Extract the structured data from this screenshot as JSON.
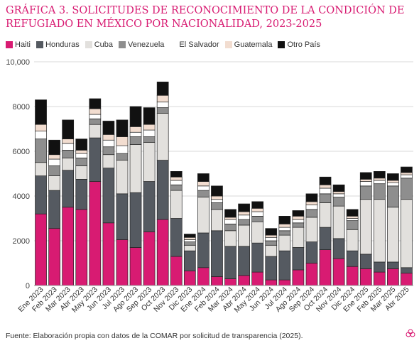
{
  "title": "GRÁFICA 3. SOLICITUDES DE RECONOCIMIENTO DE LA CONDICIÓN DE REFUGIADO EN MÉXICO POR NACIONALIDAD, 2023-2025",
  "source": "Fuente: Elaboración propia con datos de la COMAR por solicitud de transparencia (2025).",
  "logo_icon": "flower-logo-icon",
  "chart_data": {
    "type": "bar",
    "stacked": true,
    "ylim": [
      0,
      10000
    ],
    "yticks": [
      0,
      2000,
      4000,
      6000,
      8000,
      10000
    ],
    "ytick_labels": [
      "0",
      "2000",
      "4000",
      "6000",
      "8000",
      "10,000"
    ],
    "grid": true,
    "legend_position": "top-left",
    "categories": [
      "Ene 2023",
      "Feb 2023",
      "Mar 2023",
      "Abr 2023",
      "May 2023",
      "Jun 2023",
      "Jul 2023",
      "Ago 2023",
      "Sep 2023",
      "Oct 2023",
      "Nov 2023",
      "Dic 2023",
      "Ene 2024",
      "Feb 2024",
      "Mar 2024",
      "Abr 2024",
      "May 2024",
      "Jun 2024",
      "Jul 2024",
      "Ago 2024",
      "Sep 2024",
      "Oct 2024",
      "Nov 2024",
      "Dic 2024",
      "Ene 2025",
      "Feb 2025",
      "Mar 2025",
      "Abr 2025"
    ],
    "series": [
      {
        "name": "Haiti",
        "color": "#d81b72",
        "values": [
          3200,
          2550,
          3500,
          3400,
          4650,
          2800,
          2050,
          1700,
          2400,
          2950,
          1300,
          650,
          800,
          400,
          300,
          450,
          600,
          250,
          250,
          700,
          1000,
          1600,
          1200,
          850,
          750,
          600,
          750,
          550
        ]
      },
      {
        "name": "Honduras",
        "color": "#555a61",
        "values": [
          1700,
          1700,
          1650,
          1350,
          1950,
          2450,
          2050,
          2450,
          2250,
          2650,
          1700,
          900,
          1550,
          2050,
          1450,
          1300,
          1300,
          1050,
          1300,
          1000,
          950,
          1000,
          900,
          700,
          650,
          450,
          300,
          250
        ]
      },
      {
        "name": "Cuba",
        "color": "#e2e0dd",
        "values": [
          600,
          650,
          550,
          600,
          600,
          600,
          1500,
          2150,
          1750,
          2100,
          1250,
          250,
          1600,
          950,
          700,
          950,
          950,
          500,
          700,
          900,
          1100,
          1100,
          1450,
          950,
          2450,
          2800,
          2450,
          3050
        ]
      },
      {
        "name": "Venezuela",
        "color": "#8e8e8e",
        "values": [
          1050,
          450,
          350,
          350,
          250,
          350,
          300,
          350,
          250,
          250,
          250,
          150,
          300,
          300,
          300,
          250,
          250,
          200,
          200,
          200,
          350,
          400,
          400,
          400,
          600,
          700,
          950,
          950
        ]
      },
      {
        "name": "El Salvador",
        "color": "#ffffff",
        "values": [
          350,
          300,
          300,
          200,
          200,
          300,
          350,
          200,
          300,
          250,
          200,
          100,
          200,
          150,
          200,
          200,
          200,
          150,
          150,
          150,
          200,
          250,
          150,
          100,
          200,
          150,
          150,
          150
        ]
      },
      {
        "name": "Guatemala",
        "color": "#f2ddd0",
        "values": [
          300,
          200,
          200,
          150,
          250,
          250,
          400,
          250,
          250,
          300,
          150,
          100,
          200,
          150,
          100,
          150,
          150,
          100,
          150,
          150,
          150,
          150,
          100,
          100,
          100,
          100,
          100,
          100
        ]
      },
      {
        "name": "Otro País",
        "color": "#111111",
        "values": [
          1100,
          650,
          850,
          500,
          450,
          600,
          750,
          900,
          750,
          600,
          250,
          150,
          350,
          450,
          350,
          350,
          300,
          300,
          350,
          250,
          350,
          350,
          300,
          300,
          300,
          300,
          300,
          250
        ]
      }
    ]
  }
}
